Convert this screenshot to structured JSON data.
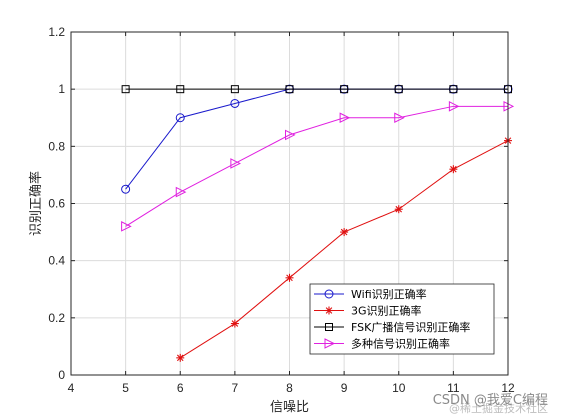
{
  "chart_data": {
    "type": "line",
    "xlabel": "信噪比",
    "ylabel": "识别正确率",
    "xlim": [
      4,
      12
    ],
    "ylim": [
      0,
      1.2
    ],
    "xticks": [
      "4",
      "5",
      "6",
      "7",
      "8",
      "9",
      "10",
      "11",
      "12"
    ],
    "yticks": [
      "0",
      "0.2",
      "0.4",
      "0.6",
      "0.8",
      "1",
      "1.2"
    ],
    "grid": true,
    "legend_position": "bottom-right",
    "series": [
      {
        "name": "Wifi识别正确率",
        "color": "#1a1acc",
        "marker": "circle",
        "x": [
          5,
          6,
          7,
          8,
          9,
          10,
          11,
          12
        ],
        "y": [
          0.65,
          0.9,
          0.95,
          1.0,
          1.0,
          1.0,
          1.0,
          1.0
        ]
      },
      {
        "name": "3G识别正确率",
        "color": "#e01010",
        "marker": "asterisk",
        "x": [
          6,
          7,
          8,
          9,
          10,
          11,
          12
        ],
        "y": [
          0.06,
          0.18,
          0.34,
          0.5,
          0.58,
          0.72,
          0.82
        ]
      },
      {
        "name": "FSK广播信号识别正确率",
        "color": "#000000",
        "marker": "square",
        "x": [
          5,
          6,
          7,
          8,
          9,
          10,
          11,
          12
        ],
        "y": [
          1.0,
          1.0,
          1.0,
          1.0,
          1.0,
          1.0,
          1.0,
          1.0
        ]
      },
      {
        "name": "多种信号识别正确率",
        "color": "#e020e0",
        "marker": "triangle-right",
        "x": [
          5,
          6,
          7,
          8,
          9,
          10,
          11,
          12
        ],
        "y": [
          0.52,
          0.64,
          0.74,
          0.84,
          0.9,
          0.9,
          0.94,
          0.94
        ]
      }
    ]
  },
  "watermark": {
    "main": "CSDN @我爱C编程",
    "sub": "@稀土掘金技术社区"
  }
}
